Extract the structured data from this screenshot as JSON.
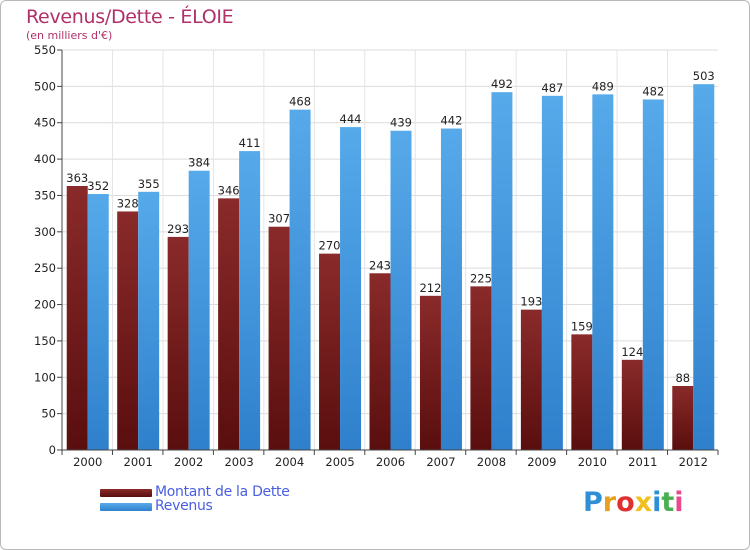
{
  "title": "Revenus/Dette - ÉLOIE",
  "subtitle": "(en milliers d'€)",
  "logo": {
    "text": "Proxiti",
    "colors": [
      "#2f8fd6",
      "#e8a020",
      "#e03030",
      "#f0c020",
      "#2f8fd6",
      "#48b050",
      "#e84a8a"
    ]
  },
  "colors": {
    "debt_top": "#8a2a2a",
    "debt_bottom": "#5a0e0e",
    "revenue_top": "#56aaea",
    "revenue_bottom": "#2f80cc",
    "text_accent": "#b0306a",
    "legend_text": "#4a5ee0"
  },
  "chart_data": {
    "type": "bar",
    "title": "Revenus/Dette - ÉLOIE",
    "subtitle": "(en milliers d'€)",
    "categories": [
      "2000",
      "2001",
      "2002",
      "2003",
      "2004",
      "2005",
      "2006",
      "2007",
      "2008",
      "2009",
      "2010",
      "2011",
      "2012"
    ],
    "series": [
      {
        "name": "Montant de la Dette",
        "values": [
          363,
          328,
          293,
          346,
          307,
          270,
          243,
          212,
          225,
          193,
          159,
          124,
          88
        ]
      },
      {
        "name": "Revenus",
        "values": [
          352,
          355,
          384,
          411,
          468,
          444,
          439,
          442,
          492,
          487,
          489,
          482,
          503
        ]
      }
    ],
    "ylim": [
      0,
      550
    ],
    "yticks": [
      0,
      50,
      100,
      150,
      200,
      250,
      300,
      350,
      400,
      450,
      500,
      550
    ],
    "grid": true,
    "legend_position": "bottom-left"
  }
}
